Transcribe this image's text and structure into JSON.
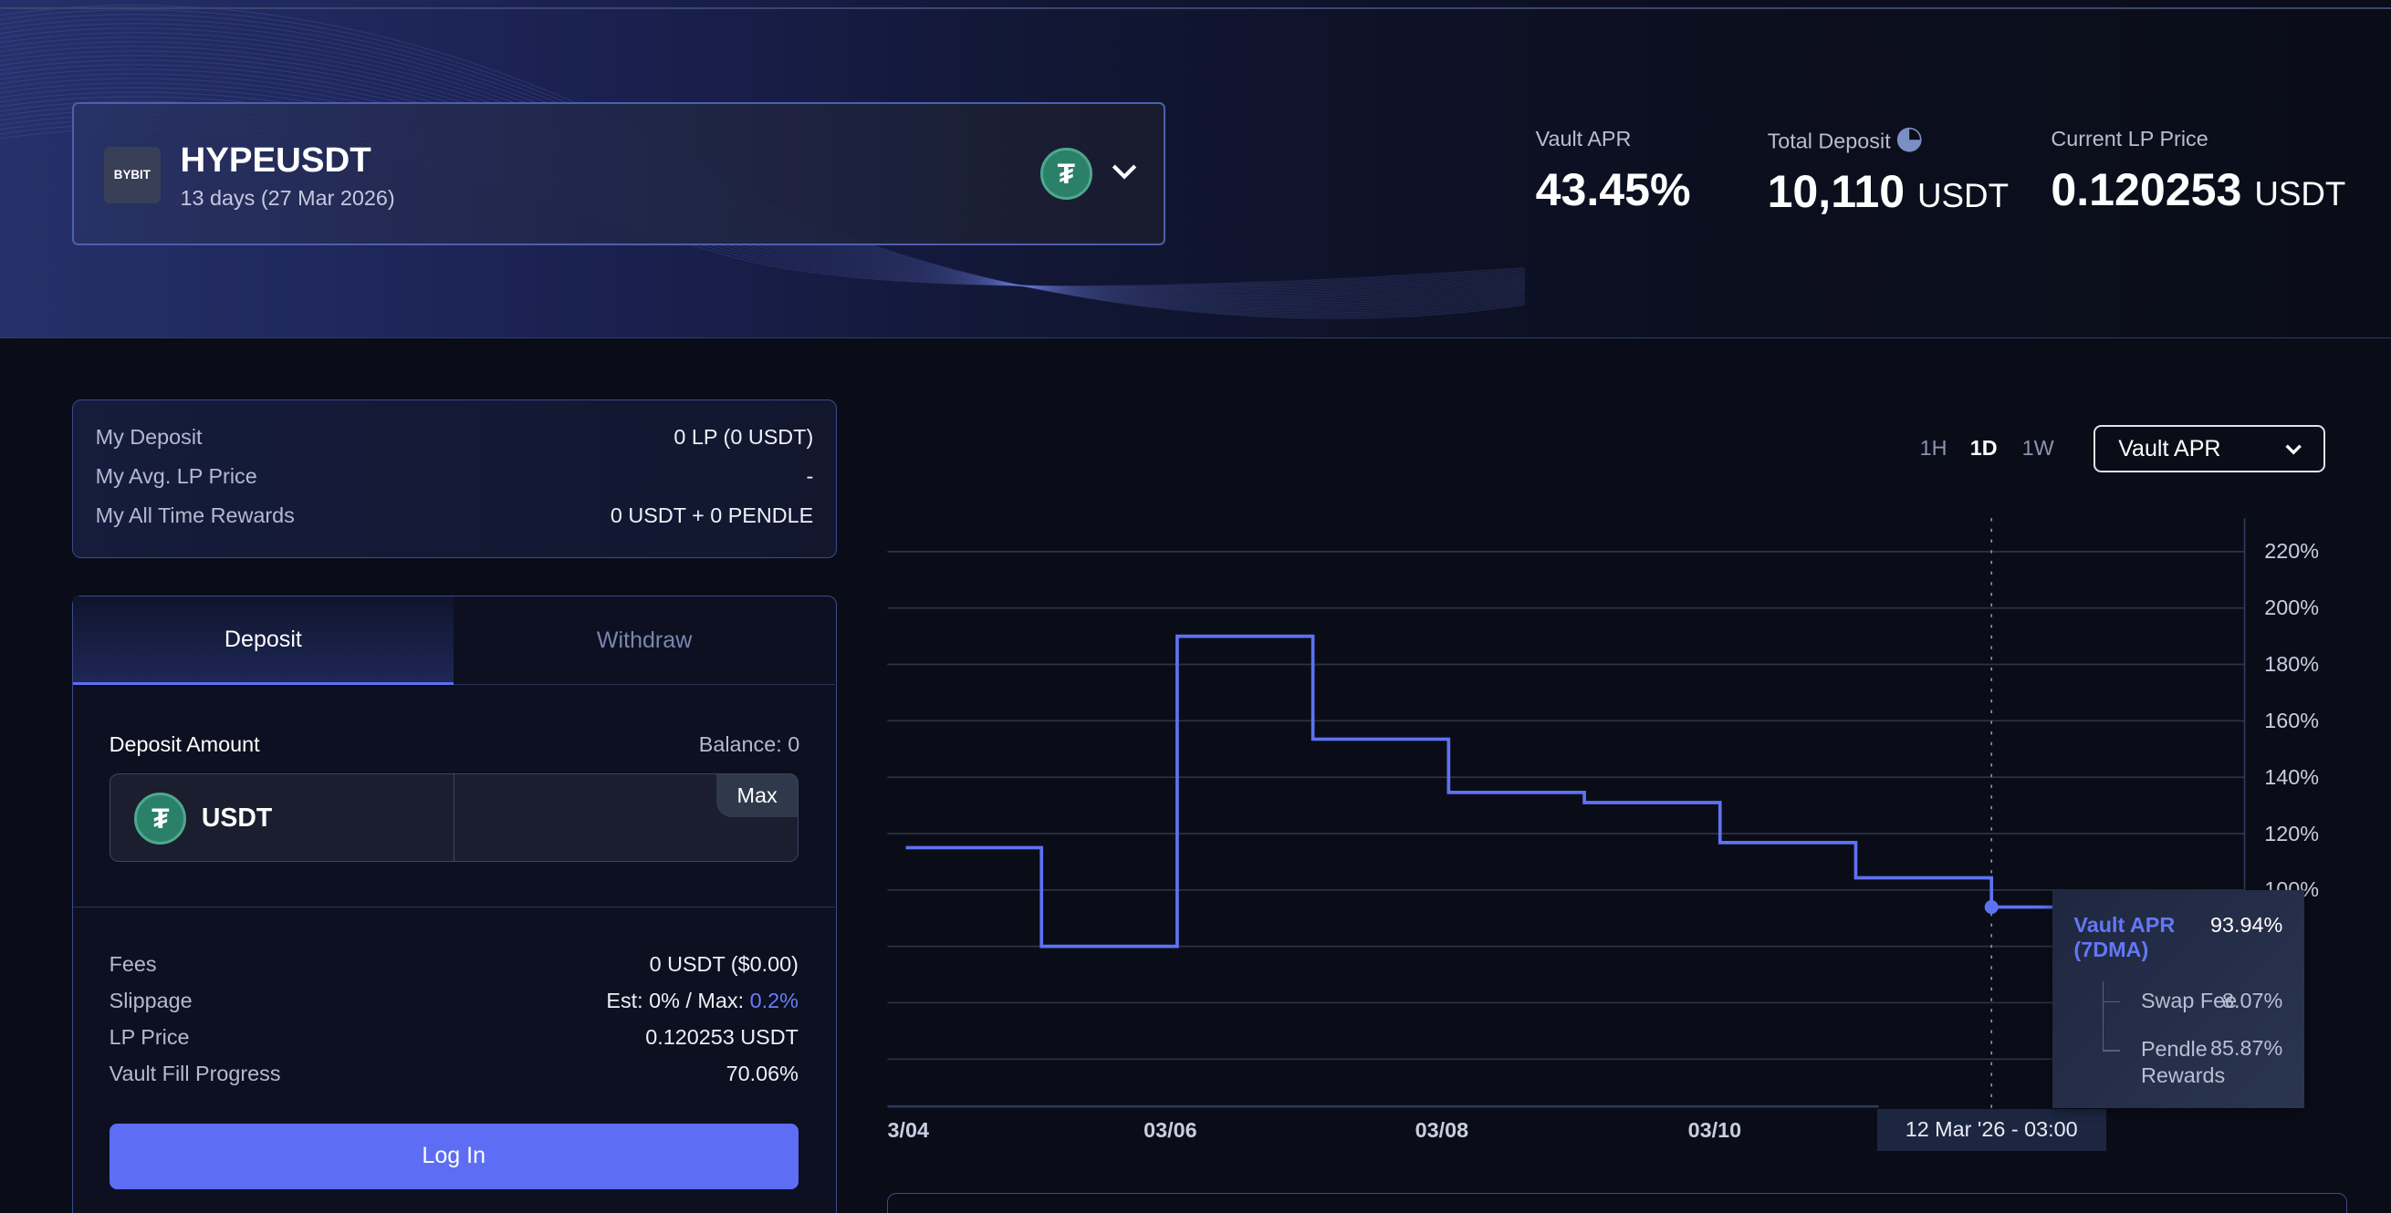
{
  "pair": {
    "logo": "BYBIT",
    "name": "HYPEUSDT",
    "maturity": "13 days (27 Mar 2026)",
    "token_icon": "tether-icon"
  },
  "stats": [
    {
      "label": "Vault APR",
      "value": "43.45%",
      "unit": ""
    },
    {
      "label": "Total Deposit",
      "value": "10,110",
      "unit": "USDT"
    },
    {
      "label": "Current LP Price",
      "value": "0.120253",
      "unit": "USDT"
    }
  ],
  "my": {
    "rows": [
      {
        "label": "My Deposit",
        "value": "0 LP (0 USDT)"
      },
      {
        "label": "My Avg. LP Price",
        "value": "-"
      },
      {
        "label": "My All Time Rewards",
        "value": "0 USDT + 0 PENDLE"
      }
    ]
  },
  "tabs": {
    "deposit": "Deposit",
    "withdraw": "Withdraw"
  },
  "form": {
    "amount_label": "Deposit Amount",
    "balance": "Balance: 0",
    "token": "USDT",
    "max": "Max",
    "amount_value": ""
  },
  "details": {
    "fees_label": "Fees",
    "fees_value": "0 USDT ($0.00)",
    "slippage_label": "Slippage",
    "slippage_est": "Est: 0% / Max: ",
    "slippage_max": "0.2%",
    "lp_label": "LP Price",
    "lp_value": "0.120253 USDT",
    "fill_label": "Vault Fill Progress",
    "fill_value": "70.06%"
  },
  "login": "Log In",
  "timeframes": [
    "1H",
    "1D",
    "1W"
  ],
  "active_timeframe": "1D",
  "metric_select": "Vault APR",
  "tooltip": {
    "title": "Vault APR (7DMA)",
    "value": "93.94%",
    "swap_label": "Swap Fee",
    "swap_value": "8.07%",
    "pendle_label": "Pendle Rewards",
    "pendle_value": "85.87%",
    "date": "12 Mar '26 - 03:00"
  },
  "colors": {
    "accent": "#5d6ef5",
    "line": "#5f72f2"
  },
  "chart_data": {
    "type": "line",
    "step": true,
    "title": "Vault APR",
    "x": [
      "03/04",
      "03/05",
      "03/06",
      "03/07",
      "03/08",
      "03/09",
      "03/10",
      "03/11",
      "03/12"
    ],
    "values": [
      115,
      80,
      190,
      153.5,
      134.6,
      131,
      116.8,
      104.3,
      93.94
    ],
    "xticks": [
      "3/04",
      "03/06",
      "03/08",
      "03/10"
    ],
    "yticks": [
      "220%",
      "200%",
      "180%",
      "160%",
      "140%",
      "120%",
      "100%"
    ],
    "ylim": [
      40,
      230
    ],
    "ylabel": "",
    "xlabel": "",
    "grid": true
  }
}
